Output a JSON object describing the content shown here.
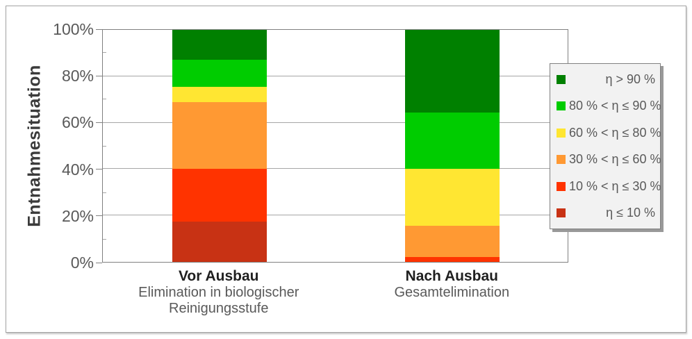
{
  "chart_data": {
    "type": "stacked_bar",
    "title": "",
    "ylabel": "Entnahmesituation",
    "y_axis": {
      "min": 0,
      "max": 100,
      "major_tick_step": 20,
      "minor_tick_step": 10,
      "tick_labels": [
        "0%",
        "20%",
        "40%",
        "60%",
        "80%",
        "100%"
      ]
    },
    "grid": "horizontal-major",
    "legend_position": "right",
    "categories": [
      {
        "title": "Vor Ausbau",
        "subtitle_lines": [
          "Elimination in biologischer",
          "Reinigungsstufe"
        ]
      },
      {
        "title": "Nach Ausbau",
        "subtitle_lines": [
          "Gesamtelimination"
        ]
      }
    ],
    "series": [
      {
        "label": "η > 90 %",
        "color": "#008000",
        "values": [
          13,
          35.5
        ]
      },
      {
        "label": "80 % < η ≤ 90 %",
        "color": "#00CC00",
        "values": [
          11.5,
          24.5
        ]
      },
      {
        "label": "60 % < η ≤ 80 %",
        "color": "#FFE632",
        "values": [
          6.5,
          24.5
        ]
      },
      {
        "label": "30 % < η ≤ 60 %",
        "color": "#FF9933",
        "values": [
          29,
          13.5
        ]
      },
      {
        "label": "10 % < η ≤ 30 %",
        "color": "#FF3300",
        "values": [
          22.5,
          2
        ]
      },
      {
        "label": "η ≤ 10 %",
        "color": "#C83214",
        "values": [
          17.5,
          0
        ]
      }
    ]
  },
  "style": {
    "background": "#FFFFFF",
    "outer_border": "#A3A3A3",
    "plot_border": "#808080",
    "grid_color": "#A6A6A6",
    "axis_text_color": "#595959",
    "category_title_color": "#1F1F1F",
    "category_subtitle_color": "#595959",
    "ylabel_color": "#3B3B3B",
    "legend_bg": "#F2F2F2",
    "legend_border": "#808080",
    "legend_shadow": "#999999"
  }
}
